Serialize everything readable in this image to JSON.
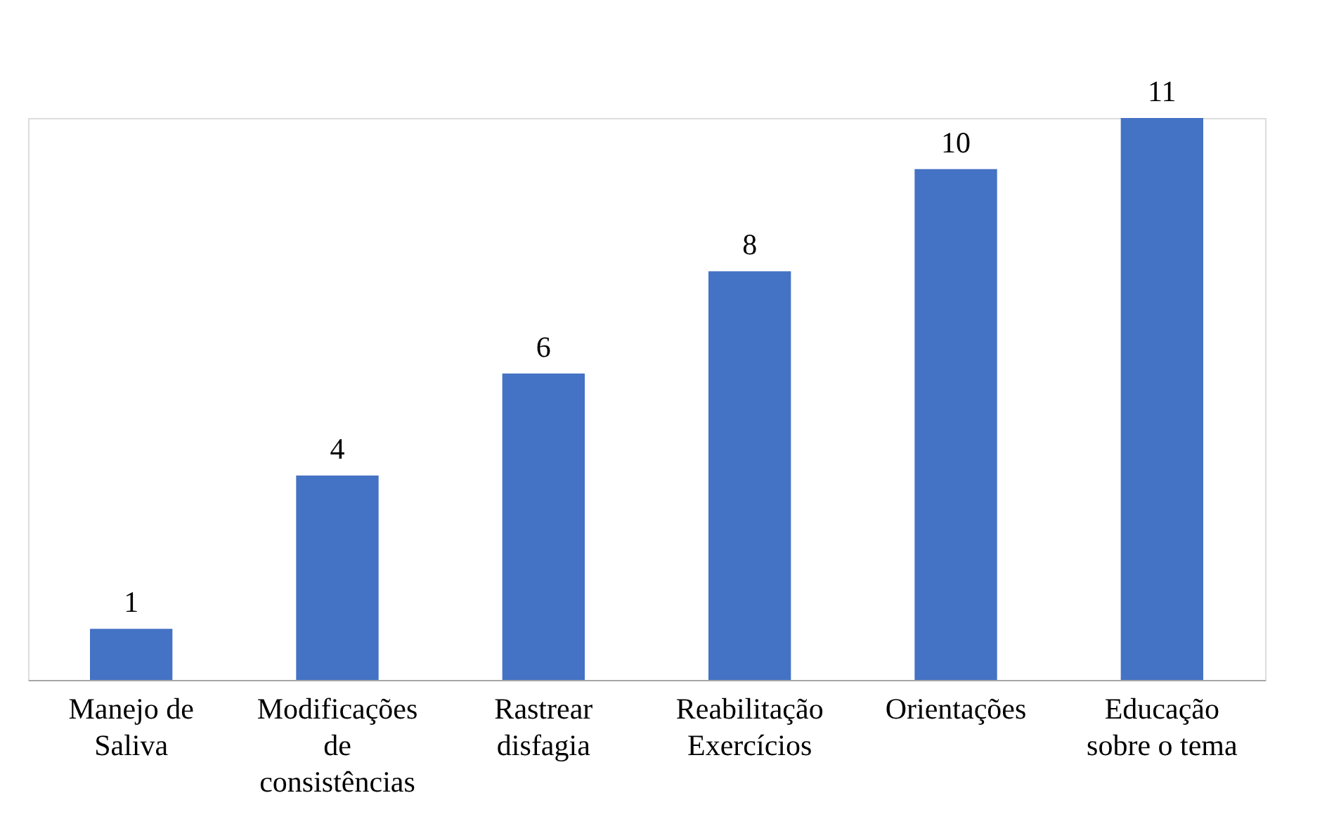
{
  "chart_data": {
    "type": "bar",
    "categories": [
      "Manejo de Saliva",
      "Modificações de consistências",
      "Rastrear disfagia",
      "Reabilitação Exercícios",
      "Orientações",
      "Educação sobre o tema"
    ],
    "values": [
      1,
      4,
      6,
      8,
      10,
      11
    ],
    "color": "#4472c4",
    "data_labels": true
  }
}
